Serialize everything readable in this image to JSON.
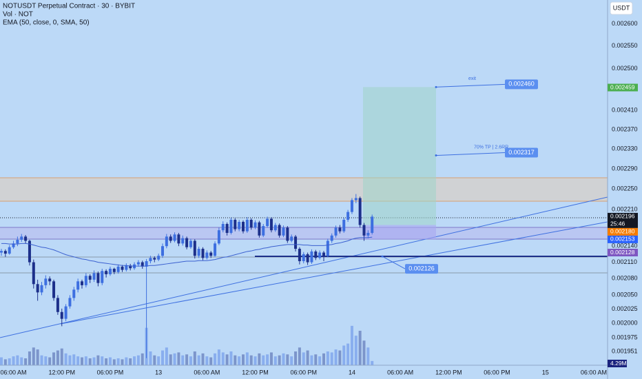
{
  "chart_data": {
    "type": "candlestick",
    "title": "NOTUSDT Perpetual Contract · 30 · BYBIT",
    "subtitle": "Vol · NOT",
    "indicator": "EMA (50, close, 0, SMA, 50)",
    "currency": "USDT",
    "log_scale": true,
    "ylim": [
      0.001928,
      0.002655
    ],
    "yticks": [
      {
        "value": 0.0026,
        "label": "0.002600"
      },
      {
        "value": 0.00255,
        "label": "0.002550"
      },
      {
        "value": 0.0025,
        "label": "0.002500"
      },
      {
        "value": 0.00241,
        "label": "0.002410"
      },
      {
        "value": 0.00237,
        "label": "0.002370"
      },
      {
        "value": 0.00233,
        "label": "0.002330"
      },
      {
        "value": 0.00229,
        "label": "0.002290"
      },
      {
        "value": 0.00225,
        "label": "0.002250"
      },
      {
        "value": 0.00221,
        "label": "0.002210"
      },
      {
        "value": 0.00214,
        "label": "0.002140"
      },
      {
        "value": 0.00211,
        "label": "0.002110"
      },
      {
        "value": 0.00208,
        "label": "0.002080"
      },
      {
        "value": 0.00205,
        "label": "0.002050"
      },
      {
        "value": 0.002025,
        "label": "0.002025"
      },
      {
        "value": 0.002,
        "label": "0.002000"
      },
      {
        "value": 0.001975,
        "label": "0.001975"
      },
      {
        "value": 0.001951,
        "label": "0.001951"
      }
    ],
    "xticks": [
      {
        "value": 3,
        "label": "06:00 AM"
      },
      {
        "value": 15,
        "label": "12:00 PM"
      },
      {
        "value": 27,
        "label": "06:00 PM"
      },
      {
        "value": 39,
        "label": "13"
      },
      {
        "value": 51,
        "label": "06:00 AM"
      },
      {
        "value": 63,
        "label": "12:00 PM"
      },
      {
        "value": 75,
        "label": "06:00 PM"
      },
      {
        "value": 87,
        "label": "14"
      },
      {
        "value": 99,
        "label": "06:00 AM"
      },
      {
        "value": 111,
        "label": "12:00 PM"
      },
      {
        "value": 123,
        "label": "06:00 PM"
      },
      {
        "value": 135,
        "label": "15"
      },
      {
        "value": 147,
        "label": "06:00 AM"
      }
    ],
    "up_color": "#3d6fe0",
    "down_color": "#1c2f8a",
    "ema_color": "#3a5fcf",
    "candles": [
      [
        0.002128,
        0.002135,
        0.002122,
        0.002131
      ],
      [
        0.002131,
        0.002134,
        0.00212,
        0.002126
      ],
      [
        0.002126,
        0.002142,
        0.002124,
        0.002138
      ],
      [
        0.002138,
        0.00215,
        0.002135,
        0.002145
      ],
      [
        0.002145,
        0.002158,
        0.00214,
        0.002152
      ],
      [
        0.002152,
        0.002163,
        0.002148,
        0.002158
      ],
      [
        0.002158,
        0.002161,
        0.002145,
        0.00215
      ],
      [
        0.00215,
        0.002152,
        0.002104,
        0.00211
      ],
      [
        0.00211,
        0.002115,
        0.002062,
        0.00207
      ],
      [
        0.00207,
        0.002078,
        0.00204,
        0.002055
      ],
      [
        0.002055,
        0.002074,
        0.00205,
        0.002068
      ],
      [
        0.002068,
        0.002086,
        0.002062,
        0.00208
      ],
      [
        0.00208,
        0.002084,
        0.002068,
        0.002075
      ],
      [
        0.002075,
        0.002078,
        0.00204,
        0.002045
      ],
      [
        0.002045,
        0.00205,
        0.002015,
        0.00202
      ],
      [
        0.00202,
        0.002026,
        0.001995,
        0.002008
      ],
      [
        0.002008,
        0.002034,
        0.002004,
        0.00203
      ],
      [
        0.00203,
        0.00205,
        0.002026,
        0.002045
      ],
      [
        0.002045,
        0.002065,
        0.00204,
        0.00206
      ],
      [
        0.00206,
        0.00208,
        0.002055,
        0.002075
      ],
      [
        0.002075,
        0.002078,
        0.002062,
        0.002068
      ],
      [
        0.002068,
        0.00209,
        0.002064,
        0.002085
      ],
      [
        0.002085,
        0.002088,
        0.002072,
        0.002078
      ],
      [
        0.002078,
        0.002095,
        0.002074,
        0.00209
      ],
      [
        0.00209,
        0.002093,
        0.002066,
        0.002072
      ],
      [
        0.002072,
        0.002098,
        0.002068,
        0.002094
      ],
      [
        0.002094,
        0.002097,
        0.002082,
        0.002088
      ],
      [
        0.002088,
        0.002102,
        0.002085,
        0.002098
      ],
      [
        0.002098,
        0.0021,
        0.002088,
        0.002092
      ],
      [
        0.002092,
        0.002106,
        0.002089,
        0.002102
      ],
      [
        0.002102,
        0.002105,
        0.002092,
        0.002096
      ],
      [
        0.002096,
        0.002108,
        0.002093,
        0.002104
      ],
      [
        0.002104,
        0.002107,
        0.002095,
        0.002099
      ],
      [
        0.002099,
        0.00211,
        0.002096,
        0.002106
      ],
      [
        0.002106,
        0.002114,
        0.002102,
        0.00211
      ],
      [
        0.00211,
        0.002113,
        0.002098,
        0.002102
      ],
      [
        0.002102,
        0.002116,
        0.00194,
        0.002112
      ],
      [
        0.002112,
        0.002122,
        0.002108,
        0.002118
      ],
      [
        0.002118,
        0.002121,
        0.00211,
        0.002115
      ],
      [
        0.002115,
        0.002126,
        0.002112,
        0.002122
      ],
      [
        0.002122,
        0.002145,
        0.002118,
        0.00214
      ],
      [
        0.00214,
        0.002163,
        0.002136,
        0.002158
      ],
      [
        0.002158,
        0.002162,
        0.002146,
        0.00215
      ],
      [
        0.00215,
        0.002166,
        0.002147,
        0.002162
      ],
      [
        0.002162,
        0.002165,
        0.00214,
        0.002145
      ],
      [
        0.002145,
        0.00216,
        0.002141,
        0.002155
      ],
      [
        0.002155,
        0.002158,
        0.002134,
        0.002138
      ],
      [
        0.002138,
        0.002154,
        0.002135,
        0.00215
      ],
      [
        0.00215,
        0.002153,
        0.002117,
        0.002122
      ],
      [
        0.002122,
        0.002139,
        0.002118,
        0.002135
      ],
      [
        0.002135,
        0.002138,
        0.002114,
        0.002118
      ],
      [
        0.002118,
        0.002132,
        0.002115,
        0.002128
      ],
      [
        0.002128,
        0.002131,
        0.002118,
        0.002122
      ],
      [
        0.002122,
        0.002149,
        0.00212,
        0.002145
      ],
      [
        0.002145,
        0.002175,
        0.002142,
        0.00217
      ],
      [
        0.00217,
        0.002187,
        0.002166,
        0.002182
      ],
      [
        0.002182,
        0.002185,
        0.00216,
        0.002165
      ],
      [
        0.002165,
        0.002194,
        0.002162,
        0.00219
      ],
      [
        0.00219,
        0.002193,
        0.002168,
        0.002172
      ],
      [
        0.002172,
        0.00219,
        0.002168,
        0.002186
      ],
      [
        0.002186,
        0.002189,
        0.002164,
        0.002168
      ],
      [
        0.002168,
        0.002195,
        0.002165,
        0.00219
      ],
      [
        0.00219,
        0.002193,
        0.002171,
        0.002175
      ],
      [
        0.002175,
        0.002189,
        0.002172,
        0.002185
      ],
      [
        0.002185,
        0.002188,
        0.002156,
        0.00216
      ],
      [
        0.00216,
        0.002182,
        0.002157,
        0.002178
      ],
      [
        0.002178,
        0.002196,
        0.002175,
        0.002192
      ],
      [
        0.002192,
        0.002195,
        0.002166,
        0.00217
      ],
      [
        0.00217,
        0.002184,
        0.002167,
        0.00218
      ],
      [
        0.00218,
        0.002183,
        0.002156,
        0.00216
      ],
      [
        0.00216,
        0.002179,
        0.002157,
        0.002175
      ],
      [
        0.002175,
        0.002178,
        0.002146,
        0.00215
      ],
      [
        0.00215,
        0.002162,
        0.002147,
        0.002158
      ],
      [
        0.002158,
        0.002161,
        0.00213,
        0.002135
      ],
      [
        0.002135,
        0.002138,
        0.002106,
        0.002112
      ],
      [
        0.002112,
        0.002129,
        0.002108,
        0.002125
      ],
      [
        0.002125,
        0.002128,
        0.002105,
        0.00211
      ],
      [
        0.00211,
        0.002134,
        0.002107,
        0.00213
      ],
      [
        0.00213,
        0.002133,
        0.002114,
        0.002118
      ],
      [
        0.002118,
        0.002132,
        0.002115,
        0.002128
      ],
      [
        0.002128,
        0.002131,
        0.002112,
        0.002122
      ],
      [
        0.002122,
        0.002154,
        0.002119,
        0.00215
      ],
      [
        0.00215,
        0.002164,
        0.002146,
        0.00216
      ],
      [
        0.00216,
        0.002179,
        0.002156,
        0.002175
      ],
      [
        0.002175,
        0.00218,
        0.002164,
        0.002168
      ],
      [
        0.002168,
        0.002194,
        0.002165,
        0.00219
      ],
      [
        0.00219,
        0.002209,
        0.002186,
        0.002205
      ],
      [
        0.002205,
        0.002232,
        0.002201,
        0.002228
      ],
      [
        0.002228,
        0.00224,
        0.002222,
        0.002232
      ],
      [
        0.002232,
        0.002235,
        0.002175,
        0.00218
      ],
      [
        0.00218,
        0.002184,
        0.00215,
        0.00216
      ],
      [
        0.00216,
        0.00217,
        0.002155,
        0.002165
      ],
      [
        0.002165,
        0.0022,
        0.002162,
        0.002196
      ]
    ],
    "ema": [
      0.002145,
      0.002145,
      0.002144,
      0.002144,
      0.002144,
      0.002145,
      0.002145,
      0.002144,
      0.002142,
      0.00214,
      0.002138,
      0.002137,
      0.002135,
      0.002133,
      0.00213,
      0.002127,
      0.002124,
      0.002122,
      0.00212,
      0.002118,
      0.002116,
      0.002115,
      0.002113,
      0.002112,
      0.00211,
      0.002109,
      0.002108,
      0.002107,
      0.002106,
      0.002105,
      0.002104,
      0.002104,
      0.002103,
      0.002103,
      0.002103,
      0.002103,
      0.002103,
      0.002104,
      0.002104,
      0.002105,
      0.002106,
      0.002107,
      0.002108,
      0.002109,
      0.00211,
      0.002111,
      0.002112,
      0.002112,
      0.002112,
      0.002113,
      0.002113,
      0.002113,
      0.002114,
      0.002115,
      0.002117,
      0.002119,
      0.00212,
      0.002122,
      0.002124,
      0.002126,
      0.002128,
      0.00213,
      0.002131,
      0.002133,
      0.002134,
      0.002136,
      0.002137,
      0.002139,
      0.00214,
      0.002141,
      0.002142,
      0.002143,
      0.002143,
      0.002143,
      0.002143,
      0.002142,
      0.002142,
      0.002141,
      0.002141,
      0.002141,
      0.002141,
      0.002142,
      0.002143,
      0.002145,
      0.002146,
      0.002148,
      0.00215,
      0.002153,
      0.002155,
      0.002156,
      0.002156,
      0.002156,
      0.002157
    ],
    "volume_lim": [
      0,
      70
    ],
    "volumes": [
      8,
      6,
      7,
      9,
      10,
      8,
      7,
      14,
      18,
      16,
      10,
      9,
      8,
      13,
      15,
      17,
      12,
      10,
      11,
      9,
      8,
      9,
      7,
      8,
      10,
      9,
      7,
      8,
      6,
      7,
      6,
      8,
      7,
      9,
      10,
      12,
      38,
      14,
      10,
      9,
      15,
      18,
      11,
      12,
      13,
      10,
      11,
      9,
      14,
      10,
      12,
      9,
      8,
      12,
      16,
      13,
      11,
      14,
      10,
      9,
      11,
      13,
      10,
      9,
      12,
      10,
      11,
      13,
      9,
      10,
      12,
      11,
      9,
      14,
      18,
      13,
      15,
      10,
      11,
      9,
      12,
      14,
      13,
      16,
      15,
      20,
      22,
      40,
      30,
      35,
      25,
      18,
      4.29
    ],
    "volume_value_label": "4.29M",
    "countdown": "25:46",
    "markers": [
      {
        "value": 0.002459,
        "label": "0.002459",
        "color": "#4caf50"
      },
      {
        "value": 0.002196,
        "label": "0.002196",
        "color": "#131722"
      },
      {
        "value": 0.00218,
        "label": "0.002180",
        "color": "#f57c00"
      },
      {
        "value": 0.002153,
        "label": "0.002153",
        "color": "#2962ff"
      },
      {
        "value": 0.002128,
        "label": "0.002128",
        "color": "#7e57c2"
      }
    ],
    "annotations": [
      {
        "text": "exit",
        "value": 0.00246,
        "label": "0.002460"
      },
      {
        "text": "70% TP | 2.6RR",
        "value": 0.002317,
        "label": "0.002317"
      },
      {
        "value": 0.002126,
        "label": "0.002126"
      }
    ]
  }
}
